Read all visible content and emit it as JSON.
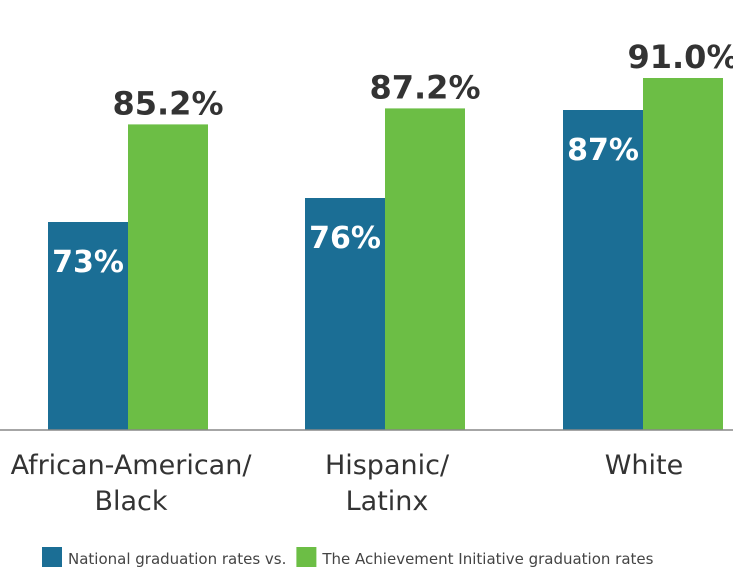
{
  "chart_data": {
    "type": "bar",
    "categories": [
      [
        "African-American/",
        "Black"
      ],
      [
        "Hispanic/",
        "Latinx"
      ],
      [
        "White"
      ]
    ],
    "series": [
      {
        "name": "National graduation rates vs.",
        "values": [
          73,
          76,
          87
        ],
        "labels": [
          "73%",
          "76%",
          "87%"
        ],
        "color": "#1b6e95",
        "label_position": "inside-top"
      },
      {
        "name": "The Achievement Initiative graduation rates",
        "values": [
          85.2,
          87.2,
          91.0
        ],
        "labels": [
          "85.2%",
          "87.2%",
          "91.0%"
        ],
        "color": "#6cbe45",
        "label_position": "above"
      }
    ],
    "title": "",
    "xlabel": "",
    "ylabel": "",
    "ylim": [
      47,
      95
    ],
    "grid": false,
    "legend": "bottom",
    "baseline_color": "#888888"
  }
}
